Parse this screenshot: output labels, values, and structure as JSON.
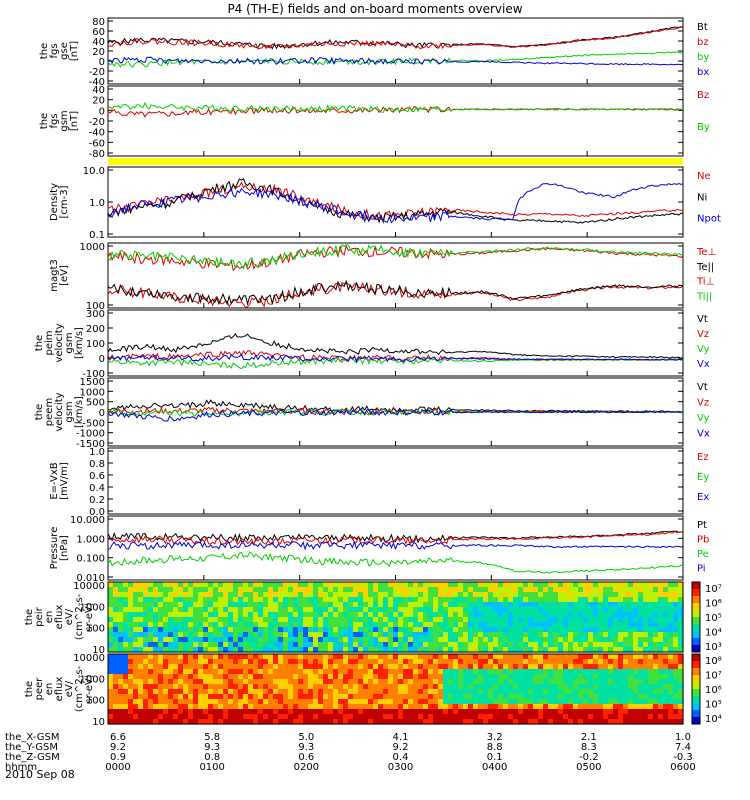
{
  "title": "P4 (TH-E) fields and on-board moments overview",
  "date_label": "2010 Sep 08",
  "colors": {
    "black": "#000000",
    "red": "#e00000",
    "green": "#00d000",
    "blue": "#0000e0",
    "yellow": "#ffff00"
  },
  "chart_data": [
    {
      "type": "line",
      "panel": "fgs-gse",
      "ylabel_lines": [
        "the",
        "fgs",
        "gse",
        "[nT]"
      ],
      "ylim": [
        -40,
        80
      ],
      "yticks": [
        "80",
        "60",
        "40",
        "20",
        "0",
        "-20",
        "-40"
      ],
      "series": [
        {
          "name": "Bt",
          "color": "#000000",
          "values": [
            35,
            40,
            38,
            36,
            32,
            28,
            34,
            36,
            35,
            30,
            31,
            33,
            28,
            32,
            40,
            45,
            55,
            65
          ]
        },
        {
          "name": "bz",
          "color": "#e00000",
          "values": [
            33,
            38,
            36,
            34,
            30,
            27,
            32,
            34,
            33,
            29,
            30,
            32,
            27,
            31,
            39,
            44,
            54,
            63
          ]
        },
        {
          "name": "by",
          "color": "#00d000",
          "values": [
            -3,
            -5,
            0,
            -2,
            0,
            2,
            0,
            1,
            0,
            2,
            3,
            2,
            5,
            8,
            12,
            14,
            16,
            18
          ]
        },
        {
          "name": "bx",
          "color": "#0000e0",
          "values": [
            3,
            4,
            2,
            3,
            2,
            1,
            3,
            2,
            2,
            1,
            0,
            1,
            -1,
            -2,
            -3,
            -4,
            -4,
            -5
          ]
        }
      ]
    },
    {
      "type": "line",
      "panel": "fgs-gsm",
      "ylabel_lines": [
        "the",
        "fgs",
        "gsm",
        "[nT]"
      ],
      "ylim": [
        -80,
        40
      ],
      "yticks": [
        "40",
        "20",
        "0",
        "-20",
        "-40",
        "-60",
        "-80"
      ],
      "series": [
        {
          "name": "Bz",
          "color": "#e00000",
          "values": [
            -5,
            -8,
            -6,
            -4,
            -3,
            -2,
            -2,
            -1,
            -1,
            0,
            0,
            0,
            0,
            0,
            0,
            0,
            0,
            0
          ]
        },
        {
          "name": "By",
          "color": "#00d000",
          "values": [
            3,
            6,
            4,
            2,
            2,
            1,
            1,
            1,
            0,
            0,
            0,
            0,
            0,
            0,
            0,
            0,
            0,
            0
          ]
        }
      ]
    },
    {
      "type": "line",
      "panel": "density",
      "log": true,
      "ylabel_lines": [
        "Density",
        "[cm-3]"
      ],
      "ylim": [
        0.1,
        100
      ],
      "yticks": [
        "10.0",
        "1.0",
        "0.1"
      ],
      "series": [
        {
          "name": "Ne",
          "color": "#e00000",
          "values": [
            1.2,
            2.5,
            4,
            8,
            15,
            10,
            3,
            1.2,
            0.8,
            1.0,
            1.5,
            1.2,
            0.9,
            1.0,
            0.8,
            1.0,
            1.2,
            1.5
          ]
        },
        {
          "name": "Ni",
          "color": "#000000",
          "values": [
            1.0,
            2.0,
            3,
            10,
            20,
            8,
            2,
            0.9,
            0.6,
            0.8,
            1.2,
            0.8,
            0.5,
            0.5,
            0.4,
            0.6,
            0.8,
            1.0
          ]
        },
        {
          "name": "Npot",
          "color": "#0000e0",
          "values": [
            1.0,
            2.2,
            3.5,
            6,
            9,
            6,
            2.5,
            1.0,
            0.7,
            0.6,
            0.8,
            0.6,
            0.6,
            20,
            8,
            5,
            15,
            20
          ]
        }
      ]
    },
    {
      "type": "line",
      "panel": "temperature",
      "log": true,
      "ylabel_lines": [
        "magt3",
        "[eV]"
      ],
      "ylim": [
        30,
        10000
      ],
      "yticks": [
        "1000",
        "100"
      ],
      "series": [
        {
          "name": "Te⊥",
          "color": "#e00000",
          "values": [
            150,
            120,
            80,
            60,
            50,
            60,
            150,
            200,
            150,
            120,
            100,
            120,
            60,
            80,
            150,
            200,
            180,
            200
          ]
        },
        {
          "name": "Te||",
          "color": "#000000",
          "values": [
            160,
            130,
            90,
            70,
            60,
            70,
            160,
            220,
            160,
            130,
            110,
            130,
            70,
            90,
            160,
            220,
            200,
            220
          ]
        },
        {
          "name": "Ti⊥",
          "color": "#e00000",
          "values": [
            3000,
            2500,
            2000,
            1500,
            1200,
            2000,
            4000,
            5000,
            4500,
            4000,
            3500,
            4000,
            5000,
            6000,
            5000,
            4000,
            3500,
            3000
          ]
        },
        {
          "name": "Ti||",
          "color": "#00d000",
          "values": [
            3500,
            3000,
            2500,
            1800,
            1500,
            2200,
            4500,
            5500,
            5000,
            4500,
            4000,
            4500,
            5500,
            6500,
            5500,
            4500,
            4000,
            3500
          ]
        }
      ]
    },
    {
      "type": "line",
      "panel": "peim-velocity",
      "ylabel_lines": [
        "the",
        "peim",
        "velocity",
        "gsm",
        "[km/s]"
      ],
      "ylim": [
        -100,
        300
      ],
      "yticks": [
        "300",
        "200",
        "100",
        "0",
        "-100"
      ],
      "series": [
        {
          "name": "Vt",
          "color": "#000000",
          "values": [
            50,
            80,
            60,
            100,
            150,
            90,
            60,
            40,
            60,
            50,
            40,
            50,
            30,
            20,
            20,
            15,
            15,
            10
          ]
        },
        {
          "name": "Vz",
          "color": "#e00000",
          "values": [
            10,
            20,
            15,
            30,
            40,
            20,
            10,
            5,
            10,
            10,
            5,
            10,
            0,
            0,
            0,
            0,
            0,
            0
          ]
        },
        {
          "name": "Vy",
          "color": "#00d000",
          "values": [
            -10,
            -20,
            -15,
            -30,
            -40,
            -20,
            -10,
            -5,
            -10,
            -10,
            -5,
            -10,
            -5,
            -3,
            -2,
            -2,
            -1,
            -1
          ]
        },
        {
          "name": "Vx",
          "color": "#0000e0",
          "values": [
            5,
            10,
            5,
            10,
            15,
            10,
            5,
            3,
            5,
            5,
            3,
            5,
            2,
            1,
            1,
            1,
            0,
            0
          ]
        }
      ]
    },
    {
      "type": "line",
      "panel": "peem-velocity",
      "ylabel_lines": [
        "the",
        "peem",
        "velocity",
        "gsm",
        "[km/s]"
      ],
      "ylim": [
        -1500,
        1500
      ],
      "yticks": [
        "1500",
        "1000",
        "500",
        "0",
        "-500",
        "-1000",
        "-1500"
      ],
      "series": [
        {
          "name": "Vt",
          "color": "#000000",
          "values": [
            100,
            300,
            250,
            400,
            300,
            200,
            150,
            100,
            150,
            100,
            100,
            80,
            60,
            50,
            40,
            30,
            30,
            20
          ]
        },
        {
          "name": "Vz",
          "color": "#e00000",
          "values": [
            20,
            60,
            40,
            80,
            60,
            30,
            20,
            10,
            20,
            10,
            10,
            10,
            5,
            5,
            5,
            3,
            3,
            2
          ]
        },
        {
          "name": "Vy",
          "color": "#00d000",
          "values": [
            -20,
            -60,
            -40,
            -80,
            -60,
            -30,
            -20,
            -10,
            -20,
            -10,
            -10,
            -10,
            -5,
            -5,
            -5,
            -3,
            -3,
            -2
          ]
        },
        {
          "name": "Vx",
          "color": "#0000e0",
          "values": [
            -30,
            -200,
            -300,
            -100,
            -80,
            -40,
            -30,
            -10,
            -20,
            -10,
            -10,
            -10,
            -5,
            -5,
            -5,
            -3,
            -3,
            -2
          ]
        }
      ]
    },
    {
      "type": "line",
      "panel": "e-field",
      "ylabel_lines": [
        "E=-VxB",
        "[mV/m]"
      ],
      "ylim": [
        0,
        1
      ],
      "yticks": [
        "1.0",
        "0.8",
        "0.6",
        "0.4",
        "0.2",
        "0.0"
      ],
      "series": [
        {
          "name": "Ez",
          "color": "#e00000",
          "values": []
        },
        {
          "name": "Ey",
          "color": "#00d000",
          "values": []
        },
        {
          "name": "Ex",
          "color": "#0000e0",
          "values": []
        }
      ]
    },
    {
      "type": "line",
      "panel": "pressure",
      "log": true,
      "ylabel_lines": [
        "Pressure",
        "[nPa]"
      ],
      "ylim": [
        0.003,
        15
      ],
      "yticks": [
        "10.000",
        "1.000",
        "0.100",
        "0.010"
      ],
      "series": [
        {
          "name": "Pt",
          "color": "#000000",
          "values": [
            0.9,
            1.0,
            0.9,
            0.8,
            0.8,
            0.8,
            0.9,
            0.8,
            0.8,
            0.7,
            0.8,
            0.9,
            0.8,
            0.9,
            1.0,
            1.2,
            1.5,
            2.0
          ]
        },
        {
          "name": "Pb",
          "color": "#e00000",
          "values": [
            0.6,
            0.7,
            0.6,
            0.5,
            0.5,
            0.5,
            0.6,
            0.6,
            0.6,
            0.5,
            0.6,
            0.7,
            0.7,
            0.8,
            0.9,
            1.1,
            1.3,
            1.8
          ]
        },
        {
          "name": "Pe",
          "color": "#00d000",
          "values": [
            0.03,
            0.04,
            0.05,
            0.06,
            0.08,
            0.06,
            0.04,
            0.03,
            0.03,
            0.03,
            0.04,
            0.03,
            0.01,
            0.008,
            0.01,
            0.012,
            0.015,
            0.02
          ]
        },
        {
          "name": "Pi",
          "color": "#0000e0",
          "values": [
            0.3,
            0.3,
            0.3,
            0.3,
            0.3,
            0.3,
            0.3,
            0.3,
            0.3,
            0.3,
            0.3,
            0.3,
            0.3,
            0.25,
            0.25,
            0.25,
            0.25,
            0.25
          ]
        }
      ]
    },
    {
      "type": "heatmap",
      "panel": "peir-spectrogram",
      "ylabel_lines": [
        "the",
        "peir",
        "en",
        "eflux",
        "eV/",
        "(cm^2-s-",
        "sr-eV)"
      ],
      "yticks": [
        "10000",
        "1000",
        "100",
        "10"
      ],
      "colorbar_ticks": [
        "10⁷",
        "10⁶",
        "10⁵",
        "10⁴",
        "10³"
      ]
    },
    {
      "type": "heatmap",
      "panel": "peer-spectrogram",
      "ylabel_lines": [
        "the",
        "peer",
        "en",
        "eflux",
        "eV/",
        "(cm^2-s-",
        "sr-eV)"
      ],
      "yticks": [
        "10000",
        "1000",
        "100",
        "10"
      ],
      "colorbar_ticks": [
        "10⁸",
        "10⁷",
        "10⁶",
        "10⁵",
        "10⁴"
      ]
    }
  ],
  "xaxis": {
    "rows": [
      {
        "label": "the_X-GSM",
        "values": [
          "6.6",
          "5.8",
          "5.0",
          "4.1",
          "3.2",
          "2.1",
          "1.0"
        ]
      },
      {
        "label": "the_Y-GSM",
        "values": [
          "9.2",
          "9.3",
          "9.3",
          "9.2",
          "8.8",
          "8.3",
          "7.4"
        ]
      },
      {
        "label": "the_Z-GSM",
        "values": [
          "0.9",
          "0.8",
          "0.6",
          "0.4",
          "0.1",
          "-0.2",
          "-0.3"
        ]
      },
      {
        "label": "hhmm",
        "values": [
          "0000",
          "0100",
          "0200",
          "0300",
          "0400",
          "0500",
          "0600"
        ]
      }
    ]
  }
}
